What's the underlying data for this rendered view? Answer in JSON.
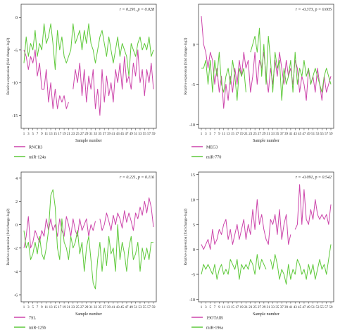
{
  "chart_data": [
    {
      "type": "line",
      "annotation": "r = 0.291, p = 0.028",
      "xlabel": "Sample number",
      "ylabel": "Relative expression (fold change-log2)",
      "ylim": [
        -17,
        2
      ],
      "yticks": [
        0,
        -5,
        -10,
        -15
      ],
      "x_tick_labels": [
        "1",
        "3",
        "5",
        "7",
        "9",
        "11",
        "13",
        "15",
        "17",
        "19",
        "21",
        "23",
        "25",
        "27",
        "29",
        "31",
        "33",
        "35",
        "37",
        "39",
        "41",
        "43",
        "45",
        "47",
        "49",
        "51",
        "53",
        "55",
        "57",
        "59"
      ],
      "series": [
        {
          "name": "RNCR3",
          "color": "#cc44aa",
          "values": [
            -5,
            -6,
            -8,
            -6,
            -7,
            -5,
            -9,
            -7,
            -11,
            -11,
            -8,
            -13,
            -10,
            -14,
            -11,
            -14,
            -12,
            -13,
            -12,
            -14,
            -13,
            null,
            -11,
            -8,
            -10,
            -7,
            -12,
            -8,
            -13,
            -9,
            -11,
            -8,
            -14,
            -11,
            -15,
            -8,
            -13,
            -9,
            -12,
            -10,
            -13,
            -8,
            -10,
            -7,
            -11,
            -6,
            -10,
            -9,
            -11,
            -7,
            -9,
            -5,
            -10,
            -8,
            -12,
            -8,
            -10,
            -7,
            -11
          ]
        },
        {
          "name": "miR-124a",
          "color": "#5ec93a",
          "values": [
            -7,
            -3,
            -6,
            -4,
            -5,
            -2,
            -6,
            -4,
            -5,
            -1,
            -4,
            -3,
            -1,
            -4,
            -8,
            -2,
            -5,
            -3,
            -6,
            -7,
            -6,
            -5,
            -1,
            -4,
            -3,
            -2,
            -5,
            -2,
            -4,
            -1,
            -4,
            -5,
            -7,
            -5,
            -3,
            -2,
            -4,
            -6,
            -3,
            -5,
            -7,
            -5,
            -3,
            -6,
            -4,
            -5,
            -6,
            -9,
            -4,
            -5,
            -6,
            -4,
            -3,
            -5,
            -4,
            -5,
            -3,
            -6,
            -5
          ]
        }
      ]
    },
    {
      "type": "line",
      "annotation": "r = -0.373, p = 0.005",
      "xlabel": "Sample number",
      "ylabel": "Relative expression (fold change-log2)",
      "ylim": [
        -10.5,
        5
      ],
      "yticks": [
        0,
        -5,
        -10
      ],
      "x_tick_labels": [
        "1",
        "3",
        "5",
        "7",
        "9",
        "11",
        "13",
        "15",
        "17",
        "19",
        "21",
        "23",
        "25",
        "27",
        "29",
        "31",
        "33",
        "35",
        "37",
        "39",
        "41",
        "43",
        "45",
        "47",
        "49",
        "51",
        "53",
        "55",
        "57",
        "59"
      ],
      "series": [
        {
          "name": "MEG3",
          "color": "#cc44aa",
          "values": [
            3.5,
            0,
            -1,
            -3,
            -1,
            -2,
            -5,
            -3,
            -6,
            -4,
            -8,
            -5,
            -7,
            -4,
            -6,
            -3,
            -5,
            -2,
            -4,
            -1,
            -3,
            -2,
            -6,
            -4,
            -1,
            -5,
            -2,
            -3,
            -1,
            -4,
            -6,
            -3,
            -5,
            -2,
            -4,
            -1,
            -3,
            -5,
            -2,
            -4,
            -3,
            -5,
            -2,
            -3,
            -6,
            -4,
            -5,
            -7,
            -3,
            -5,
            -4,
            -6,
            -3,
            -5,
            -7,
            -4,
            -6,
            -5,
            -4
          ]
        },
        {
          "name": "miR-770",
          "color": "#5ec93a",
          "values": [
            -3,
            -3,
            -2,
            -5,
            -2,
            -6,
            -2,
            -4,
            -1,
            -5,
            -6,
            -4,
            -3,
            -5,
            -2,
            -4,
            -7,
            -3,
            -4,
            -3,
            -6,
            null,
            -1,
            0,
            1,
            -1,
            2,
            -4,
            0,
            -5,
            1,
            -2,
            -6,
            -1,
            -3,
            -2,
            -7,
            -3,
            -5,
            -4,
            -2,
            -6,
            -1,
            -5,
            -3,
            -4,
            -2,
            -4,
            -3,
            -5,
            -4,
            -3,
            -4,
            -5,
            -6,
            -4,
            -3,
            -4,
            -5
          ]
        }
      ]
    },
    {
      "type": "line",
      "annotation": "r = 0.221, p = 0.116",
      "xlabel": "Sample number",
      "ylabel": "Relative expression (fold change-log2)",
      "ylim": [
        -6.6,
        4.5
      ],
      "yticks": [
        4,
        2,
        0,
        -2,
        -4,
        -6
      ],
      "x_tick_labels": [
        "1",
        "3",
        "5",
        "7",
        "9",
        "11",
        "13",
        "15",
        "17",
        "19",
        "21",
        "23",
        "25",
        "27",
        "29",
        "31",
        "33",
        "35",
        "37",
        "39",
        "41",
        "43",
        "45",
        "47",
        "49",
        "51",
        "53",
        "55",
        "57",
        "59"
      ],
      "series": [
        {
          "name": "7SL",
          "color": "#cc44aa",
          "values": [
            -2,
            -1,
            0.7,
            -2,
            -1.5,
            -0.5,
            -1,
            -1.5,
            -0.5,
            -1,
            0.5,
            -0.5,
            0.5,
            -0.5,
            0,
            -1,
            0.5,
            -0.5,
            -1,
            0.7,
            0,
            -1,
            0.5,
            -0.5,
            -1,
            0.5,
            -0.5,
            0,
            0.5,
            -1,
            0,
            -0.5,
            0.3,
            null,
            0.5,
            -0.5,
            0,
            1,
            0.3,
            -0.5,
            0.8,
            0,
            1,
            0.5,
            -0.3,
            1.2,
            0.2,
            1,
            0.3,
            -0.5,
            1,
            0.5,
            1.5,
            0.8,
            2,
            1,
            2.3,
            1.5,
            -0.2
          ]
        },
        {
          "name": "miR-125b",
          "color": "#5ec93a",
          "values": [
            -0.5,
            -2,
            -1.5,
            -3,
            -2.5,
            -1.5,
            -2.5,
            -1,
            -2.5,
            -3,
            -2,
            -0.5,
            2.5,
            3,
            1.5,
            -2,
            -3,
            0.5,
            -1.5,
            -2,
            -3,
            -1,
            -2,
            -1.5,
            -0.5,
            -2.5,
            -1.5,
            -4,
            -2,
            -1,
            -3,
            -5,
            -5.5,
            -3,
            -1.5,
            -4,
            -2,
            -3.5,
            -1,
            -2.5,
            -2,
            -4,
            0,
            -3,
            -1.5,
            -2.5,
            -4,
            -2,
            -1,
            -3,
            -2.5,
            -1.5,
            -4,
            -2,
            -3,
            -2,
            -3,
            -1.5,
            -1.5
          ]
        }
      ]
    },
    {
      "type": "line",
      "annotation": "r = -0.091, p = 0.542",
      "xlabel": "Sample number",
      "ylabel": "Relative expression (fold change-log2)",
      "ylim": [
        -10.5,
        15.5
      ],
      "yticks": [
        15,
        10,
        5,
        0,
        -5,
        -10
      ],
      "x_tick_labels": [
        "1",
        "3",
        "5",
        "7",
        "9",
        "11",
        "13",
        "15",
        "17",
        "19",
        "21",
        "23",
        "25",
        "27",
        "29",
        "31",
        "33",
        "35",
        "37",
        "39",
        "41",
        "43",
        "45",
        "47",
        "49",
        "51",
        "53",
        "55",
        "57",
        "59"
      ],
      "series": [
        {
          "name": "19OTAIR",
          "color": "#cc44aa",
          "values": [
            1,
            0,
            1,
            2,
            0,
            4,
            1,
            2,
            4,
            3,
            5,
            6,
            2,
            4,
            1,
            3,
            5,
            2,
            4,
            6,
            2,
            5,
            3,
            8,
            4,
            10,
            5,
            7,
            4,
            2,
            1,
            6,
            5,
            7,
            3,
            8,
            2,
            5,
            7,
            1,
            3,
            null,
            4,
            5,
            13,
            5,
            12,
            6,
            5,
            8,
            6,
            10,
            7,
            6,
            7,
            6,
            7,
            5,
            9
          ]
        },
        {
          "name": "miR-196a",
          "color": "#5ec93a",
          "values": [
            -5,
            -3,
            -4,
            -3,
            -4,
            -5,
            -3,
            -6,
            -4,
            -3,
            -5,
            -4,
            -5,
            -2,
            -3,
            -4,
            -2,
            -6,
            -3,
            -4,
            -3,
            -4,
            -2,
            -3,
            -5,
            -1,
            -4,
            -2,
            -3,
            -4,
            null,
            -2,
            -4,
            -1,
            -3,
            -6,
            -4,
            -5,
            -7,
            -3,
            -6,
            -4,
            -5,
            -2,
            -3,
            -5,
            -4,
            -6,
            -3,
            -5,
            -3,
            -6,
            -4,
            -2,
            -4,
            -3,
            -5,
            -2,
            1
          ]
        }
      ]
    }
  ]
}
